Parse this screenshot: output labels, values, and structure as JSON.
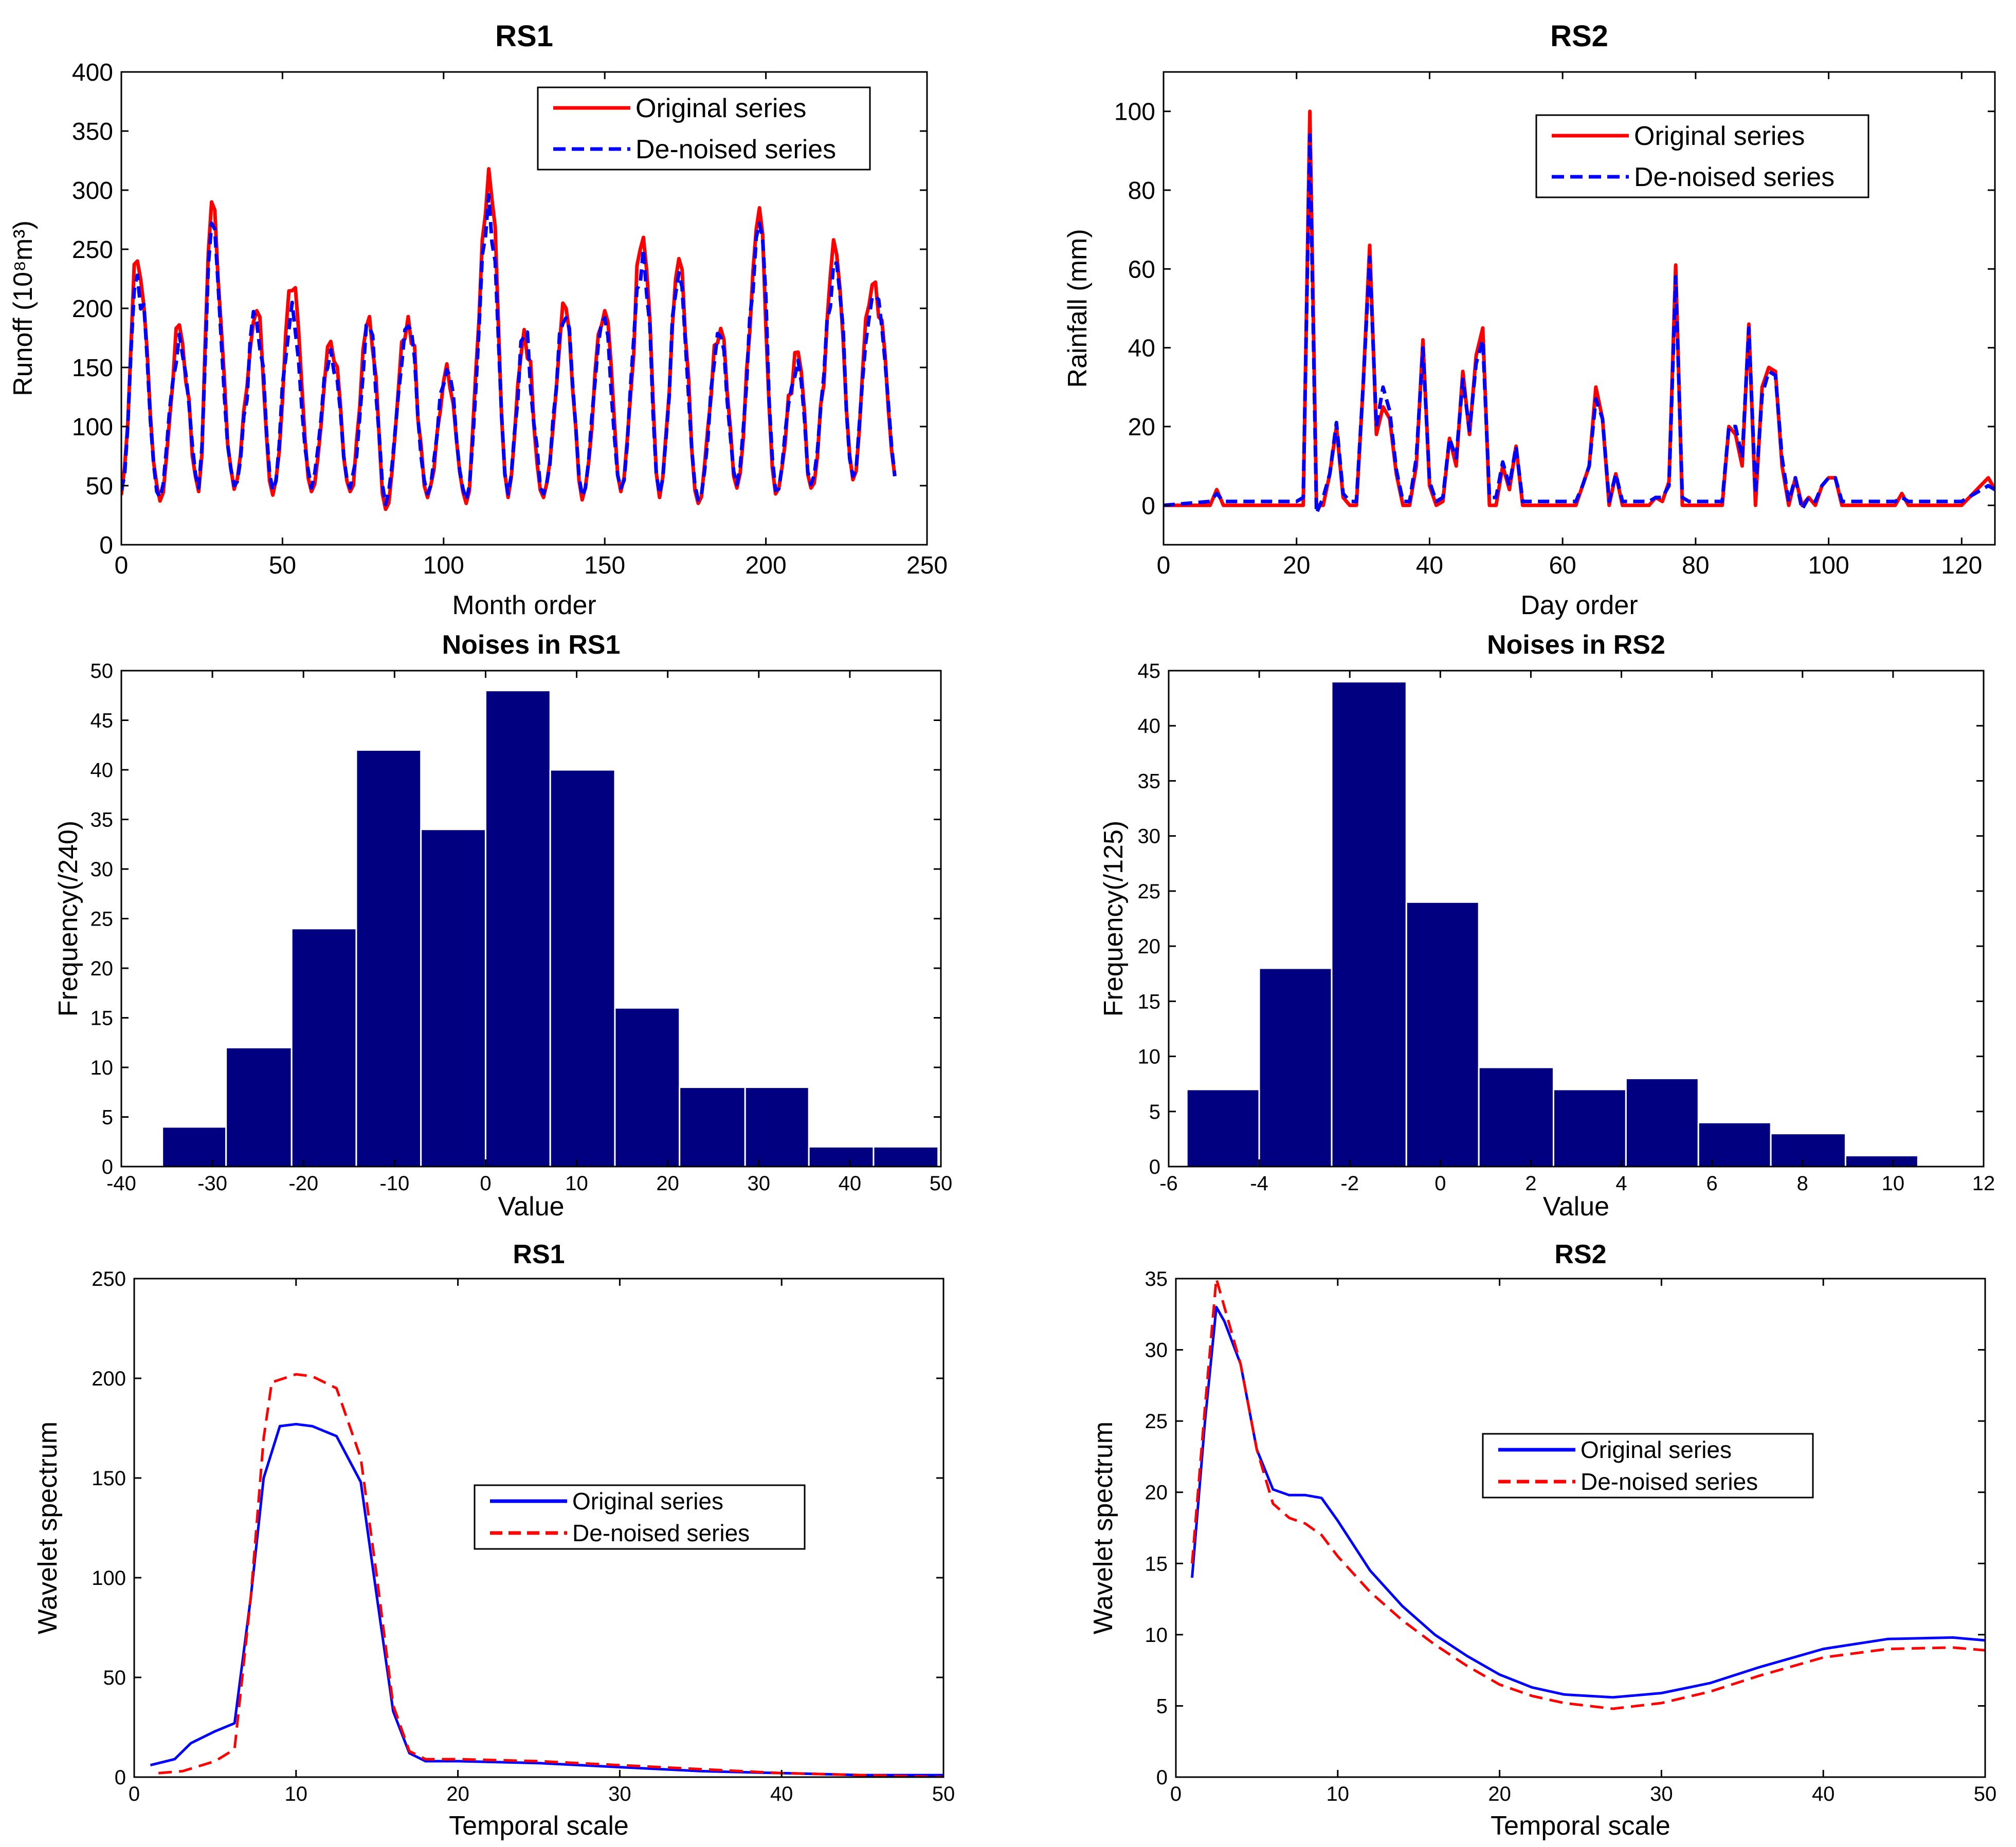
{
  "chart_data": [
    {
      "id": "p1",
      "type": "line",
      "title": "RS1",
      "xlabel": "Month order",
      "ylabel": "Runoff (10⁸m³)",
      "xlim": [
        0,
        250
      ],
      "ylim": [
        0,
        400
      ],
      "xticks": [
        0,
        50,
        100,
        150,
        200,
        250
      ],
      "yticks": [
        0,
        50,
        100,
        150,
        200,
        250,
        300,
        350,
        400
      ],
      "legend": {
        "position": "top-right"
      },
      "series": [
        {
          "name": "Original series",
          "color": "#ff0000",
          "dash": "solid",
          "peaks": [
            [
              5,
              240
            ],
            [
              18,
              186
            ],
            [
              28,
              290
            ],
            [
              42,
              198
            ],
            [
              53,
              215
            ],
            [
              65,
              172
            ],
            [
              77,
              193
            ],
            [
              89,
              193
            ],
            [
              101,
              153
            ],
            [
              114,
              318
            ],
            [
              125,
              182
            ],
            [
              138,
              200
            ],
            [
              150,
              198
            ],
            [
              162,
              260
            ],
            [
              173,
              242
            ],
            [
              186,
              183
            ],
            [
              198,
              285
            ],
            [
              210,
              163
            ],
            [
              222,
              245
            ],
            [
              233,
              220
            ],
            [
              236,
              190
            ]
          ],
          "troughs": [
            [
              0,
              42
            ],
            [
              12,
              37
            ],
            [
              24,
              45
            ],
            [
              35,
              47
            ],
            [
              47,
              42
            ],
            [
              59,
              45
            ],
            [
              71,
              45
            ],
            [
              82,
              30
            ],
            [
              95,
              40
            ],
            [
              107,
              35
            ],
            [
              120,
              40
            ],
            [
              131,
              40
            ],
            [
              143,
              38
            ],
            [
              155,
              45
            ],
            [
              167,
              40
            ],
            [
              179,
              35
            ],
            [
              191,
              48
            ],
            [
              203,
              43
            ],
            [
              214,
              48
            ],
            [
              227,
              55
            ],
            [
              240,
              58
            ]
          ]
        },
        {
          "name": "De-noised series",
          "color": "#0000ff",
          "dash": "dashed",
          "peaks": [
            [
              5,
              228
            ],
            [
              18,
              178
            ],
            [
              28,
              272
            ],
            [
              42,
              188
            ],
            [
              53,
              205
            ],
            [
              65,
              165
            ],
            [
              77,
              184
            ],
            [
              89,
              185
            ],
            [
              101,
              148
            ],
            [
              114,
              296
            ],
            [
              125,
              176
            ],
            [
              138,
              192
            ],
            [
              150,
              192
            ],
            [
              162,
              250
            ],
            [
              173,
              230
            ],
            [
              186,
              176
            ],
            [
              198,
              272
            ],
            [
              210,
              156
            ],
            [
              222,
              238
            ],
            [
              233,
              210
            ],
            [
              236,
              184
            ]
          ],
          "troughs": [
            [
              0,
              46
            ],
            [
              12,
              40
            ],
            [
              24,
              48
            ],
            [
              35,
              50
            ],
            [
              47,
              46
            ],
            [
              59,
              48
            ],
            [
              71,
              48
            ],
            [
              82,
              34
            ],
            [
              95,
              43
            ],
            [
              107,
              38
            ],
            [
              120,
              43
            ],
            [
              131,
              43
            ],
            [
              143,
              41
            ],
            [
              155,
              48
            ],
            [
              167,
              43
            ],
            [
              179,
              38
            ],
            [
              191,
              51
            ],
            [
              203,
              46
            ],
            [
              214,
              51
            ],
            [
              227,
              58
            ],
            [
              240,
              58
            ]
          ]
        }
      ]
    },
    {
      "id": "p2",
      "type": "line",
      "title": "RS2",
      "xlabel": "Day order",
      "ylabel": "Rainfall (mm)",
      "xlim": [
        0,
        125
      ],
      "ylim": [
        -10,
        110
      ],
      "xticks": [
        0,
        20,
        40,
        60,
        80,
        100,
        120
      ],
      "yticks": [
        0,
        20,
        40,
        60,
        80,
        100
      ],
      "legend": {
        "position": "top-right"
      },
      "series": [
        {
          "name": "Original series",
          "color": "#ff0000",
          "dash": "solid",
          "x": [
            0,
            7,
            8,
            9,
            14,
            18,
            20,
            21,
            22,
            23,
            24,
            25,
            26,
            27,
            28,
            29,
            30,
            31,
            32,
            33,
            34,
            35,
            36,
            37,
            38,
            39,
            40,
            41,
            42,
            43,
            44,
            45,
            46,
            47,
            48,
            49,
            50,
            51,
            52,
            53,
            54,
            58,
            62,
            63,
            64,
            65,
            66,
            67,
            68,
            69,
            70,
            73,
            74,
            75,
            76,
            77,
            78,
            79,
            80,
            82,
            84,
            85,
            86,
            87,
            88,
            89,
            90,
            91,
            92,
            93,
            94,
            95,
            96,
            97,
            98,
            99,
            100,
            101,
            102,
            106,
            110,
            111,
            112,
            120,
            124,
            125
          ],
          "y": [
            0,
            0,
            4,
            0,
            0,
            0,
            0,
            0,
            100,
            0,
            0,
            8,
            20,
            2,
            0,
            0,
            30,
            66,
            18,
            25,
            22,
            8,
            0,
            0,
            10,
            42,
            5,
            0,
            1,
            17,
            10,
            34,
            18,
            38,
            45,
            0,
            0,
            10,
            4,
            15,
            0,
            0,
            0,
            5,
            10,
            30,
            22,
            0,
            8,
            0,
            0,
            0,
            2,
            1,
            6,
            61,
            0,
            0,
            0,
            0,
            0,
            20,
            18,
            10,
            46,
            0,
            30,
            35,
            34,
            10,
            0,
            7,
            0,
            2,
            0,
            5,
            7,
            7,
            0,
            0,
            0,
            3,
            0,
            0,
            7,
            4
          ]
        },
        {
          "name": "De-noised series",
          "color": "#0000ff",
          "dash": "dashed",
          "x": [
            0,
            7,
            8,
            9,
            14,
            18,
            20,
            21,
            22,
            23,
            24,
            25,
            26,
            27,
            28,
            29,
            30,
            31,
            32,
            33,
            34,
            35,
            36,
            37,
            38,
            39,
            40,
            41,
            42,
            43,
            44,
            45,
            46,
            47,
            48,
            49,
            50,
            51,
            52,
            53,
            54,
            58,
            62,
            63,
            64,
            65,
            66,
            67,
            68,
            69,
            70,
            73,
            74,
            75,
            76,
            77,
            78,
            79,
            80,
            82,
            84,
            85,
            86,
            87,
            88,
            89,
            90,
            91,
            92,
            93,
            94,
            95,
            96,
            97,
            98,
            99,
            100,
            101,
            102,
            106,
            110,
            111,
            112,
            120,
            124,
            125
          ],
          "y": [
            0,
            1,
            3,
            1,
            1,
            1,
            1,
            2,
            94,
            -2,
            2,
            8,
            21,
            3,
            1,
            1,
            30,
            63,
            20,
            30,
            24,
            9,
            1,
            1,
            12,
            40,
            6,
            1,
            2,
            17,
            12,
            32,
            19,
            36,
            42,
            2,
            2,
            11,
            5,
            15,
            1,
            1,
            1,
            5,
            10,
            27,
            22,
            1,
            8,
            1,
            1,
            1,
            2,
            2,
            5,
            58,
            2,
            1,
            1,
            1,
            1,
            20,
            20,
            12,
            45,
            3,
            28,
            34,
            33,
            12,
            1,
            7,
            -1,
            2,
            1,
            5,
            7,
            7,
            1,
            1,
            1,
            2,
            1,
            1,
            5,
            4
          ]
        }
      ]
    },
    {
      "id": "p3",
      "type": "bar",
      "title": "Noises in RS1",
      "xlabel": "Value",
      "ylabel": "Frequency(/240)",
      "xlim": [
        -40,
        50
      ],
      "ylim": [
        0,
        50
      ],
      "xticks": [
        -40,
        -30,
        -20,
        -10,
        0,
        10,
        20,
        30,
        40,
        50
      ],
      "yticks": [
        0,
        5,
        10,
        15,
        20,
        25,
        30,
        35,
        40,
        45,
        50
      ],
      "bar_color": "#000080",
      "bin_edges": [
        -35.5,
        -28.5,
        -21.3,
        -14.2,
        -7.1,
        0,
        7.1,
        14.2,
        21.3,
        28.5,
        35.5,
        42.6,
        49.7
      ],
      "values": [
        4,
        12,
        24,
        42,
        34,
        48,
        40,
        16,
        8,
        8,
        2,
        2
      ]
    },
    {
      "id": "p4",
      "type": "bar",
      "title": "Noises in RS2",
      "xlabel": "Value",
      "ylabel": "Frequency(/125)",
      "xlim": [
        -6,
        12
      ],
      "ylim": [
        0,
        45
      ],
      "xticks": [
        -6,
        -4,
        -2,
        0,
        2,
        4,
        6,
        8,
        10,
        12
      ],
      "yticks": [
        0,
        5,
        10,
        15,
        20,
        25,
        30,
        35,
        40,
        45
      ],
      "bar_color": "#000080",
      "bin_edges": [
        -5.6,
        -4.0,
        -2.4,
        -0.75,
        0.85,
        2.5,
        4.1,
        5.7,
        7.3,
        8.95,
        10.55
      ],
      "values": [
        7,
        18,
        44,
        24,
        9,
        7,
        8,
        4,
        3,
        1
      ]
    },
    {
      "id": "p5",
      "type": "line",
      "title": "RS1",
      "xlabel": "Temporal scale",
      "ylabel": "Wavelet spectrum",
      "xlim": [
        0,
        50
      ],
      "ylim": [
        0,
        250
      ],
      "xticks": [
        0,
        10,
        20,
        30,
        40,
        50
      ],
      "yticks": [
        0,
        50,
        100,
        150,
        200,
        250
      ],
      "legend": {
        "position": "center-right"
      },
      "series": [
        {
          "name": "Original series",
          "color": "#0000ff",
          "dash": "solid",
          "x": [
            1,
            2.5,
            3.5,
            5,
            6.2,
            7.2,
            8,
            9,
            10,
            11,
            12.5,
            14,
            15,
            16,
            17,
            18,
            20,
            25,
            30,
            35,
            40,
            45,
            50
          ],
          "y": [
            6,
            9,
            17,
            23,
            27,
            90,
            150,
            176,
            177,
            176,
            171,
            148,
            90,
            33,
            12,
            8,
            8,
            7,
            5,
            3,
            2,
            1,
            1
          ]
        },
        {
          "name": "De-noised series",
          "color": "#ff0000",
          "dash": "dashed",
          "x": [
            1.5,
            3,
            5,
            6.2,
            7.2,
            8,
            8.5,
            10,
            11,
            12.5,
            14,
            15,
            16,
            17,
            18,
            20,
            25,
            30,
            35,
            40,
            45,
            50
          ],
          "y": [
            2,
            3,
            8,
            14,
            90,
            170,
            198,
            202,
            201,
            195,
            160,
            100,
            36,
            13,
            9,
            9,
            8,
            6,
            4,
            2,
            1,
            0
          ]
        }
      ]
    },
    {
      "id": "p6",
      "type": "line",
      "title": "RS2",
      "xlabel": "Temporal scale",
      "ylabel": "Wavelet spectrum",
      "xlim": [
        0,
        50
      ],
      "ylim": [
        0,
        35
      ],
      "xticks": [
        0,
        10,
        20,
        30,
        40,
        50
      ],
      "yticks": [
        0,
        5,
        10,
        15,
        20,
        25,
        30,
        35
      ],
      "legend": {
        "position": "center-right"
      },
      "series": [
        {
          "name": "Original series",
          "color": "#0000ff",
          "dash": "solid",
          "x": [
            1,
            1.8,
            2.5,
            3,
            4,
            5,
            6,
            7,
            8,
            9,
            10,
            12,
            14,
            16,
            18,
            20,
            22,
            24,
            27,
            30,
            33,
            36,
            40,
            44,
            48,
            50
          ],
          "y": [
            14,
            25,
            33,
            32,
            29,
            23,
            20.2,
            19.8,
            19.8,
            19.6,
            18,
            14.5,
            12,
            10,
            8.5,
            7.2,
            6.3,
            5.8,
            5.6,
            5.9,
            6.6,
            7.7,
            9,
            9.7,
            9.8,
            9.6
          ]
        },
        {
          "name": "De-noised series",
          "color": "#ff0000",
          "dash": "dashed",
          "x": [
            1,
            1.8,
            2.5,
            3,
            4,
            5,
            6,
            7,
            8,
            9,
            10,
            12,
            14,
            16,
            18,
            20,
            22,
            24,
            27,
            30,
            33,
            36,
            40,
            44,
            48,
            50
          ],
          "y": [
            15,
            26,
            35,
            33,
            29,
            23,
            19.2,
            18.2,
            17.8,
            17,
            15.5,
            13,
            11,
            9.3,
            7.8,
            6.5,
            5.7,
            5.2,
            4.8,
            5.2,
            6.0,
            7.1,
            8.4,
            9.0,
            9.1,
            8.9
          ]
        }
      ]
    }
  ]
}
